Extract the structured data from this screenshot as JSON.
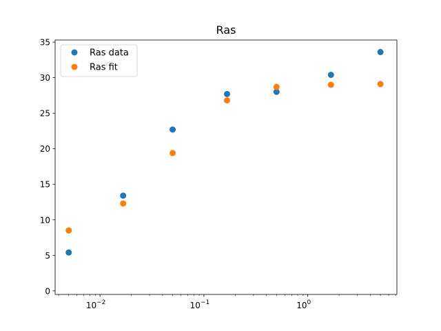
{
  "chart_data": {
    "type": "scatter",
    "title": "Ras",
    "xlabel": "",
    "ylabel": "",
    "xscale": "log",
    "xlim": [
      0.0037,
      7.2
    ],
    "ylim": [
      -0.5,
      35.3
    ],
    "xticks": [
      {
        "value": 0.01,
        "base": "10",
        "exp": "−2"
      },
      {
        "value": 0.1,
        "base": "10",
        "exp": "−1"
      },
      {
        "value": 1,
        "base": "10",
        "exp": "0"
      }
    ],
    "yticks": [
      0,
      5,
      10,
      15,
      20,
      25,
      30,
      35
    ],
    "grid": false,
    "legend_position": "top-left",
    "series": [
      {
        "name": "Ras data",
        "color": "#1f77b4",
        "x": [
          0.005,
          0.0167,
          0.05,
          0.167,
          0.5,
          1.67,
          5.0
        ],
        "y": [
          5.4,
          13.4,
          22.7,
          27.7,
          28.0,
          30.4,
          33.6
        ]
      },
      {
        "name": "Ras fit",
        "color": "#ff7f0e",
        "x": [
          0.005,
          0.0167,
          0.05,
          0.167,
          0.5,
          1.67,
          5.0
        ],
        "y": [
          8.5,
          12.3,
          19.4,
          26.8,
          28.7,
          29.0,
          29.1
        ]
      }
    ]
  }
}
